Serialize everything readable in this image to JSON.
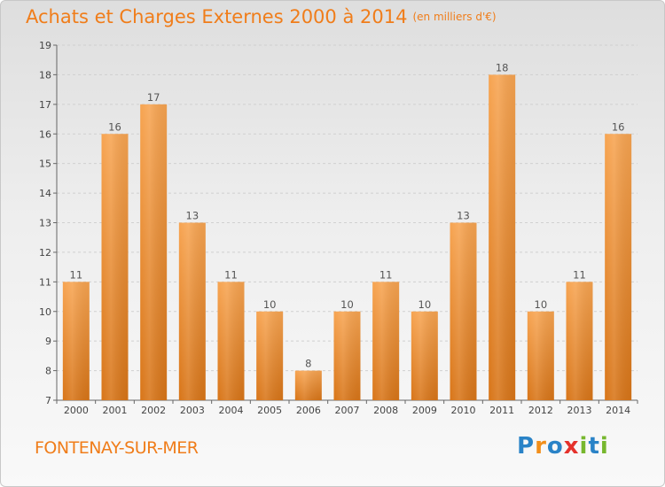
{
  "header": {
    "title": "Achats et Charges Externes 2000 à 2014",
    "unit": "(en milliers d'€)"
  },
  "footer": {
    "city": "FONTENAY-SUR-MER",
    "brand": "Proxiti"
  },
  "colors": {
    "accent": "#f07d1a",
    "bar_top": "#f7a451",
    "bar_bottom": "#d87518"
  },
  "chart_data": {
    "type": "bar",
    "title": "Achats et Charges Externes 2000 à 2014",
    "subtitle": "(en milliers d'€)",
    "categories": [
      "2000",
      "2001",
      "2002",
      "2003",
      "2004",
      "2005",
      "2006",
      "2007",
      "2008",
      "2009",
      "2010",
      "2011",
      "2012",
      "2013",
      "2014"
    ],
    "values": [
      11,
      16,
      17,
      13,
      11,
      10,
      8,
      10,
      11,
      10,
      13,
      18,
      10,
      11,
      16
    ],
    "xlabel": "",
    "ylabel": "",
    "ylim": [
      7,
      19
    ],
    "yticks": [
      7,
      8,
      9,
      10,
      11,
      12,
      13,
      14,
      15,
      16,
      17,
      18,
      19
    ],
    "grid": true,
    "legend": "none"
  }
}
